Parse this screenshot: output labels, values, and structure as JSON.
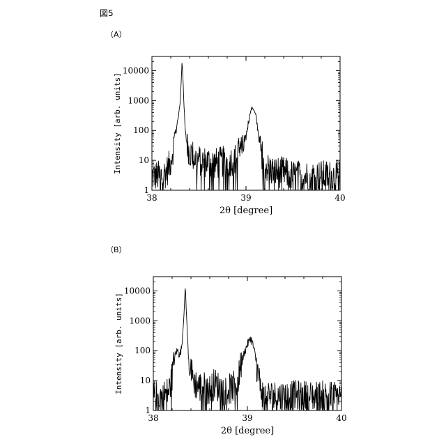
{
  "figure": {
    "label": "図5"
  },
  "chart_data": [
    {
      "type": "line",
      "panel_label": "（A）",
      "xlabel": "2θ [degree]",
      "ylabel": "Intensity [arb. units]",
      "xlim": [
        38,
        40
      ],
      "ylim": [
        1,
        30000
      ],
      "yscale": "log",
      "x_ticks": [
        38,
        39,
        40
      ],
      "x_tick_labels": [
        "38",
        "39",
        "40"
      ],
      "y_ticks": [
        1,
        10,
        100,
        1000,
        10000
      ],
      "y_tick_labels": [
        "1",
        "10",
        "100",
        "1000",
        "10000"
      ],
      "grid": false,
      "series": [
        {
          "x": [
            38.0,
            38.05,
            38.1,
            38.15,
            38.18,
            38.2,
            38.22,
            38.24,
            38.26,
            38.28,
            38.3,
            38.31,
            38.32,
            38.33,
            38.34,
            38.35,
            38.36,
            38.38,
            38.4,
            38.43,
            38.46,
            38.5,
            38.55,
            38.6,
            38.65,
            38.7,
            38.75,
            38.8,
            38.85,
            38.9,
            38.92,
            38.94,
            38.96,
            38.98,
            39.0,
            39.02,
            39.04,
            39.06,
            39.07,
            39.08,
            39.1,
            39.12,
            39.14,
            39.16,
            39.18,
            39.2,
            39.22,
            39.25,
            39.3,
            39.4,
            39.5,
            39.6,
            39.7,
            39.8,
            39.9,
            40.0
          ],
          "y": [
            3,
            3,
            3,
            4,
            6,
            10,
            20,
            60,
            120,
            250,
            900,
            3500,
            20000,
            6000,
            800,
            150,
            60,
            30,
            20,
            15,
            12,
            10,
            9,
            9,
            8,
            8,
            9,
            9,
            10,
            12,
            20,
            40,
            20,
            30,
            60,
            150,
            350,
            550,
            560,
            520,
            350,
            150,
            50,
            20,
            12,
            8,
            6,
            5,
            4,
            4,
            3,
            3,
            3,
            3,
            3,
            3
          ]
        }
      ]
    },
    {
      "type": "line",
      "panel_label": "（B）",
      "xlabel": "2θ [degree]",
      "ylabel": "Intensity [arb. units]",
      "xlim": [
        38,
        40
      ],
      "ylim": [
        1,
        30000
      ],
      "yscale": "log",
      "x_ticks": [
        38,
        39,
        40
      ],
      "x_tick_labels": [
        "38",
        "39",
        "40"
      ],
      "y_ticks": [
        1,
        10,
        100,
        1000,
        10000
      ],
      "y_tick_labels": [
        "1",
        "10",
        "100",
        "1000",
        "10000"
      ],
      "grid": false,
      "series": [
        {
          "x": [
            38.0,
            38.05,
            38.1,
            38.15,
            38.18,
            38.2,
            38.22,
            38.24,
            38.26,
            38.28,
            38.3,
            38.32,
            38.33,
            38.34,
            38.35,
            38.36,
            38.37,
            38.38,
            38.4,
            38.43,
            38.46,
            38.5,
            38.55,
            38.6,
            38.65,
            38.7,
            38.75,
            38.8,
            38.85,
            38.9,
            38.92,
            38.94,
            38.96,
            38.98,
            39.0,
            39.02,
            39.03,
            39.04,
            39.05,
            39.06,
            39.08,
            39.1,
            39.12,
            39.14,
            39.16,
            39.18,
            39.2,
            39.25,
            39.3,
            39.4,
            39.5,
            39.6,
            39.7,
            39.8,
            39.9,
            40.0
          ],
          "y": [
            3,
            3,
            3,
            4,
            6,
            15,
            40,
            90,
            100,
            70,
            120,
            800,
            3000,
            15000,
            2500,
            500,
            100,
            40,
            18,
            10,
            7,
            6,
            6,
            5,
            8,
            6,
            5,
            5,
            6,
            10,
            20,
            40,
            70,
            110,
            160,
            220,
            260,
            240,
            200,
            150,
            80,
            30,
            12,
            6,
            4,
            3,
            3,
            3,
            3,
            3,
            3,
            3,
            3,
            3,
            3,
            3
          ]
        }
      ]
    }
  ]
}
